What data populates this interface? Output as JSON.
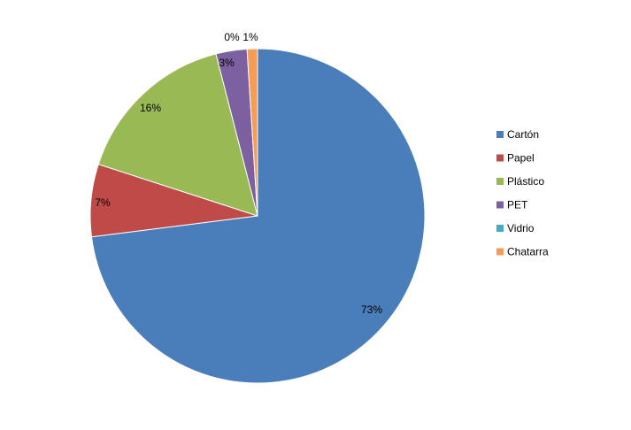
{
  "chart_data": {
    "type": "pie",
    "title": "",
    "slices": [
      {
        "label": "Cartón",
        "value": 73,
        "display": "73%",
        "color": "#4A7EBB"
      },
      {
        "label": "Papel",
        "value": 7,
        "display": "7%",
        "color": "#BE4B48"
      },
      {
        "label": "Plástico",
        "value": 16,
        "display": "16%",
        "color": "#98B954"
      },
      {
        "label": "PET",
        "value": 3,
        "display": "3%",
        "color": "#7D60A0"
      },
      {
        "label": "Vidrio",
        "value": 0,
        "display": "0%",
        "color": "#46AAC5"
      },
      {
        "label": "Chatarra",
        "value": 1,
        "display": "1%",
        "color": "#F59D56"
      }
    ],
    "start_angle_deg": 0,
    "direction": "clockwise",
    "legend_position": "right"
  }
}
